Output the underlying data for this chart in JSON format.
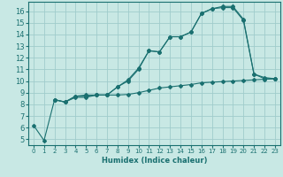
{
  "xlabel": "Humidex (Indice chaleur)",
  "xlim": [
    -0.5,
    23.5
  ],
  "ylim": [
    4.5,
    16.8
  ],
  "xticks": [
    0,
    1,
    2,
    3,
    4,
    5,
    6,
    7,
    8,
    9,
    10,
    11,
    12,
    13,
    14,
    15,
    16,
    17,
    18,
    19,
    20,
    21,
    22,
    23
  ],
  "yticks": [
    5,
    6,
    7,
    8,
    9,
    10,
    11,
    12,
    13,
    14,
    15,
    16
  ],
  "bg_color": "#c8e8e4",
  "grid_color": "#a0cccc",
  "line_color": "#1a7070",
  "line1_x": [
    0,
    1,
    2,
    3,
    4,
    5,
    6,
    7,
    8,
    9,
    10,
    11,
    12,
    13,
    14,
    15,
    16,
    17,
    18,
    19,
    20,
    21,
    22,
    23
  ],
  "line1_y": [
    6.2,
    4.9,
    8.4,
    8.2,
    8.7,
    8.8,
    8.8,
    8.8,
    9.5,
    10.1,
    11.1,
    12.6,
    12.5,
    13.8,
    13.8,
    14.2,
    15.8,
    16.2,
    16.4,
    16.4,
    15.3,
    10.6,
    10.3,
    10.2
  ],
  "line2_x": [
    2,
    3,
    4,
    5,
    6,
    7,
    8,
    9,
    10,
    11,
    12,
    13,
    14,
    15,
    16,
    17,
    18,
    19,
    20,
    21,
    22,
    23
  ],
  "line2_y": [
    8.4,
    8.2,
    8.6,
    8.6,
    8.8,
    8.8,
    8.8,
    8.85,
    9.0,
    9.2,
    9.4,
    9.5,
    9.6,
    9.7,
    9.85,
    9.9,
    9.95,
    10.0,
    10.05,
    10.1,
    10.15,
    10.2
  ],
  "line3_x": [
    2,
    3,
    4,
    5,
    6,
    7,
    8,
    9,
    10,
    11,
    12,
    13,
    14,
    15,
    16,
    17,
    18,
    19,
    20,
    21,
    22,
    23
  ],
  "line3_y": [
    8.4,
    8.2,
    8.7,
    8.7,
    8.8,
    8.8,
    9.5,
    10.0,
    11.0,
    12.6,
    12.5,
    13.8,
    13.8,
    14.2,
    15.8,
    16.2,
    16.3,
    16.3,
    15.2,
    10.6,
    10.2,
    10.2
  ]
}
